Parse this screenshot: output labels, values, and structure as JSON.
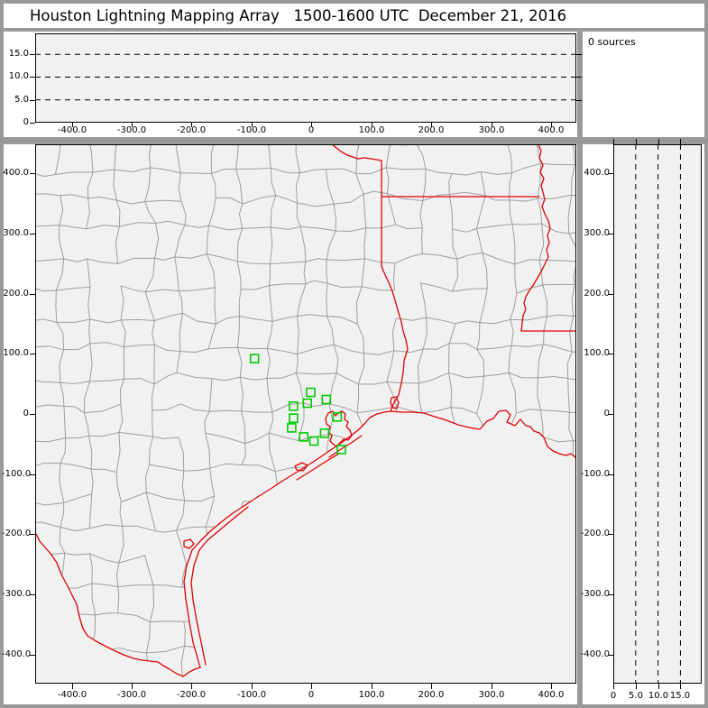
{
  "window": {
    "title": "Houston Lightning Mapping Array   1500-1600 UTC  December 21, 2016"
  },
  "sources_panel": {
    "label": "0 sources"
  },
  "colors": {
    "frame": "#999999",
    "plot_bg": "#f1f1f1",
    "county_line": "#9e9e9e",
    "state_border": "#e00000",
    "station": "#00cc00",
    "axis": "#000000",
    "page_bg": "#ffffff"
  },
  "chart_data": [
    {
      "name": "altitude-vs-eastwest-panel",
      "type": "scatter",
      "points": [],
      "source_count": 0,
      "xlim": [
        -461,
        442
      ],
      "ylim": [
        0,
        19.6
      ],
      "grid": "dashed-horizontal",
      "dashed_y_levels": [
        5,
        10,
        15
      ],
      "x_ticks": {
        "values": [
          -400,
          -300,
          -200,
          -100,
          0,
          100,
          200,
          300,
          400
        ],
        "labels": [
          "-400.0",
          "-300.0",
          "-200.0",
          "-100.0",
          "0",
          "100.0",
          "200.0",
          "300.0",
          "400.0"
        ]
      },
      "y_ticks": {
        "values": [
          15,
          10,
          5,
          0
        ],
        "labels": [
          "15.0",
          "10.0",
          "5.0",
          "0"
        ]
      }
    },
    {
      "name": "plan-view-map-panel",
      "type": "scatter",
      "points": [],
      "source_count": 0,
      "xlim": [
        -461,
        442
      ],
      "ylim": [
        -448,
        448
      ],
      "grid": "off",
      "x_ticks": {
        "values": [
          -400,
          -300,
          -200,
          -100,
          0,
          100,
          200,
          300,
          400
        ],
        "labels": [
          "-400.0",
          "-300.0",
          "-200.0",
          "-100.0",
          "0",
          "100.0",
          "200.0",
          "300.0",
          "400.0"
        ]
      },
      "y_ticks": {
        "values": [
          400,
          300,
          200,
          100,
          0,
          -100,
          -200,
          -300,
          -400
        ],
        "labels": [
          "400.0",
          "300.0",
          "200.0",
          "100.0",
          "0",
          "-100.0",
          "-200.0",
          "-300.0",
          "-400.0"
        ]
      },
      "stations_km": [
        [
          -95,
          92
        ],
        [
          -1,
          36
        ],
        [
          25,
          24
        ],
        [
          -7,
          18
        ],
        [
          -30,
          13
        ],
        [
          -30,
          -7
        ],
        [
          43,
          -5
        ],
        [
          -33,
          -23
        ],
        [
          -13,
          -38
        ],
        [
          22,
          -32
        ],
        [
          4,
          -45
        ],
        [
          50,
          -59
        ]
      ]
    },
    {
      "name": "altitude-vs-northsouth-panel",
      "type": "scatter",
      "points": [],
      "source_count": 0,
      "xlim": [
        0,
        19.75
      ],
      "ylim": [
        -448,
        448
      ],
      "grid": "dashed-vertical",
      "dashed_x_levels": [
        5,
        10,
        15
      ],
      "x_ticks": {
        "values": [
          0,
          5,
          10,
          15
        ],
        "labels": [
          "0",
          "5.0",
          "10.0",
          "15.0"
        ]
      },
      "y_ticks": {
        "values": [
          400,
          300,
          200,
          100,
          0,
          -100,
          -200,
          -300,
          -400
        ],
        "labels": [
          "400.0",
          "300.0",
          "200.0",
          "100.0",
          "0",
          "-100.0",
          "-200.0",
          "-300.0",
          "-400.0"
        ]
      }
    }
  ],
  "geo": {
    "open_paths": {
      "coast": [
        [
          183,
          580
        ],
        [
          175,
          552
        ],
        [
          171,
          530
        ],
        [
          167,
          504
        ],
        [
          165,
          485
        ],
        [
          168,
          467
        ],
        [
          174,
          450
        ],
        [
          183,
          440
        ],
        [
          193,
          430
        ],
        [
          206,
          419
        ],
        [
          219,
          409
        ],
        [
          233,
          400
        ],
        [
          248,
          390
        ],
        [
          261,
          382
        ],
        [
          273,
          374
        ],
        [
          286,
          366
        ],
        [
          299,
          358
        ],
        [
          313,
          349
        ],
        [
          326,
          340
        ],
        [
          338,
          332
        ],
        [
          349,
          324
        ],
        [
          358,
          317
        ],
        [
          365,
          310
        ],
        [
          371,
          303
        ],
        [
          379,
          299
        ],
        [
          387,
          297
        ],
        [
          394,
          296
        ],
        [
          406,
          297
        ],
        [
          419,
          297
        ],
        [
          431,
          298
        ],
        [
          443,
          302
        ],
        [
          456,
          306
        ],
        [
          469,
          311
        ],
        [
          481,
          314
        ],
        [
          493,
          316
        ],
        [
          501,
          307
        ],
        [
          508,
          304
        ],
        [
          514,
          296
        ],
        [
          522,
          295
        ],
        [
          527,
          300
        ],
        [
          523,
          308
        ],
        [
          532,
          312
        ],
        [
          538,
          305
        ],
        [
          544,
          312
        ],
        [
          549,
          313
        ],
        [
          553,
          318
        ],
        [
          559,
          320
        ],
        [
          564,
          325
        ],
        [
          568,
          335
        ],
        [
          574,
          340
        ],
        [
          581,
          343
        ],
        [
          588,
          345
        ],
        [
          594,
          343
        ],
        [
          599,
          347
        ],
        [
          601,
          352
        ]
      ],
      "rio_grande": [
        [
          0,
          430
        ],
        [
          5,
          440
        ],
        [
          11,
          447
        ],
        [
          18,
          455
        ],
        [
          24,
          464
        ],
        [
          29,
          477
        ],
        [
          35,
          488
        ],
        [
          41,
          500
        ],
        [
          46,
          510
        ],
        [
          49,
          524
        ],
        [
          53,
          537
        ],
        [
          58,
          545
        ],
        [
          66,
          550
        ],
        [
          73,
          554
        ],
        [
          81,
          558
        ],
        [
          89,
          562
        ],
        [
          98,
          566
        ],
        [
          109,
          570
        ],
        [
          119,
          572
        ],
        [
          127,
          573
        ],
        [
          136,
          574
        ],
        [
          142,
          578
        ],
        [
          149,
          582
        ],
        [
          157,
          587
        ],
        [
          164,
          590
        ],
        [
          171,
          585
        ],
        [
          177,
          582
        ],
        [
          183,
          580
        ]
      ],
      "red_river": [
        [
          329,
          0
        ],
        [
          334,
          4
        ],
        [
          339,
          8
        ],
        [
          346,
          12
        ],
        [
          352,
          14
        ],
        [
          358,
          16
        ],
        [
          365,
          15
        ],
        [
          372,
          16
        ],
        [
          378,
          17
        ],
        [
          384,
          18
        ]
      ],
      "tx_ar_border": [
        [
          384,
          18
        ],
        [
          384,
          135
        ]
      ],
      "ar_33n_border": [
        [
          384,
          58
        ],
        [
          559,
          58
        ]
      ],
      "sabine_river": [
        [
          384,
          135
        ],
        [
          388,
          145
        ],
        [
          392,
          153
        ],
        [
          396,
          163
        ],
        [
          399,
          173
        ],
        [
          403,
          187
        ],
        [
          406,
          197
        ],
        [
          408,
          207
        ],
        [
          411,
          217
        ],
        [
          413,
          227
        ],
        [
          409,
          240
        ],
        [
          408,
          253
        ],
        [
          406,
          265
        ],
        [
          403,
          278
        ],
        [
          398,
          286
        ],
        [
          394,
          296
        ]
      ],
      "mississippi_river": [
        [
          558,
          0
        ],
        [
          561,
          8
        ],
        [
          559,
          15
        ],
        [
          563,
          23
        ],
        [
          560,
          31
        ],
        [
          564,
          38
        ],
        [
          561,
          46
        ],
        [
          563,
          53
        ],
        [
          565,
          61
        ],
        [
          562,
          69
        ],
        [
          565,
          77
        ],
        [
          569,
          85
        ],
        [
          571,
          93
        ],
        [
          568,
          101
        ],
        [
          570,
          109
        ],
        [
          567,
          117
        ],
        [
          569,
          125
        ],
        [
          565,
          133
        ],
        [
          561,
          141
        ],
        [
          557,
          148
        ],
        [
          553,
          155
        ],
        [
          548,
          162
        ],
        [
          544,
          169
        ],
        [
          542,
          176
        ],
        [
          544,
          183
        ],
        [
          541,
          190
        ],
        [
          540,
          198
        ],
        [
          539,
          207
        ]
      ],
      "la_ms_31n_border": [
        [
          539,
          207
        ],
        [
          601,
          207
        ]
      ],
      "padre_island": [
        [
          189,
          577
        ],
        [
          184,
          552
        ],
        [
          179,
          528
        ],
        [
          175,
          505
        ],
        [
          173,
          486
        ],
        [
          176,
          467
        ],
        [
          182,
          450
        ],
        [
          191,
          439
        ],
        [
          203,
          429
        ],
        [
          215,
          419
        ],
        [
          226,
          410
        ],
        [
          236,
          402
        ]
      ],
      "matagorda_island": [
        [
          290,
          372
        ],
        [
          303,
          364
        ],
        [
          317,
          355
        ],
        [
          330,
          347
        ],
        [
          337,
          343
        ]
      ],
      "galveston_island": [
        [
          326,
          347
        ],
        [
          339,
          338
        ],
        [
          352,
          330
        ],
        [
          362,
          323
        ]
      ]
    },
    "closed_paths": {
      "galveston_bay": [
        [
          331,
          333
        ],
        [
          327,
          329
        ],
        [
          329,
          323
        ],
        [
          325,
          319
        ],
        [
          327,
          313
        ],
        [
          323,
          310
        ],
        [
          322,
          304
        ],
        [
          325,
          298
        ],
        [
          330,
          296
        ],
        [
          333,
          301
        ],
        [
          336,
          298
        ],
        [
          340,
          296
        ],
        [
          344,
          299
        ],
        [
          343,
          305
        ],
        [
          347,
          308
        ],
        [
          345,
          313
        ],
        [
          349,
          317
        ],
        [
          351,
          323
        ],
        [
          347,
          328
        ],
        [
          342,
          327
        ],
        [
          338,
          331
        ],
        [
          334,
          335
        ]
      ],
      "sabine_lake": [
        [
          395,
          281
        ],
        [
          400,
          280
        ],
        [
          403,
          286
        ],
        [
          401,
          293
        ],
        [
          396,
          292
        ],
        [
          394,
          286
        ]
      ],
      "corpus_bay": [
        [
          165,
          440
        ],
        [
          172,
          438
        ],
        [
          176,
          443
        ],
        [
          171,
          448
        ],
        [
          165,
          446
        ]
      ],
      "matagorda_bay": [
        [
          288,
          357
        ],
        [
          296,
          353
        ],
        [
          302,
          356
        ],
        [
          297,
          362
        ],
        [
          290,
          361
        ]
      ]
    }
  }
}
